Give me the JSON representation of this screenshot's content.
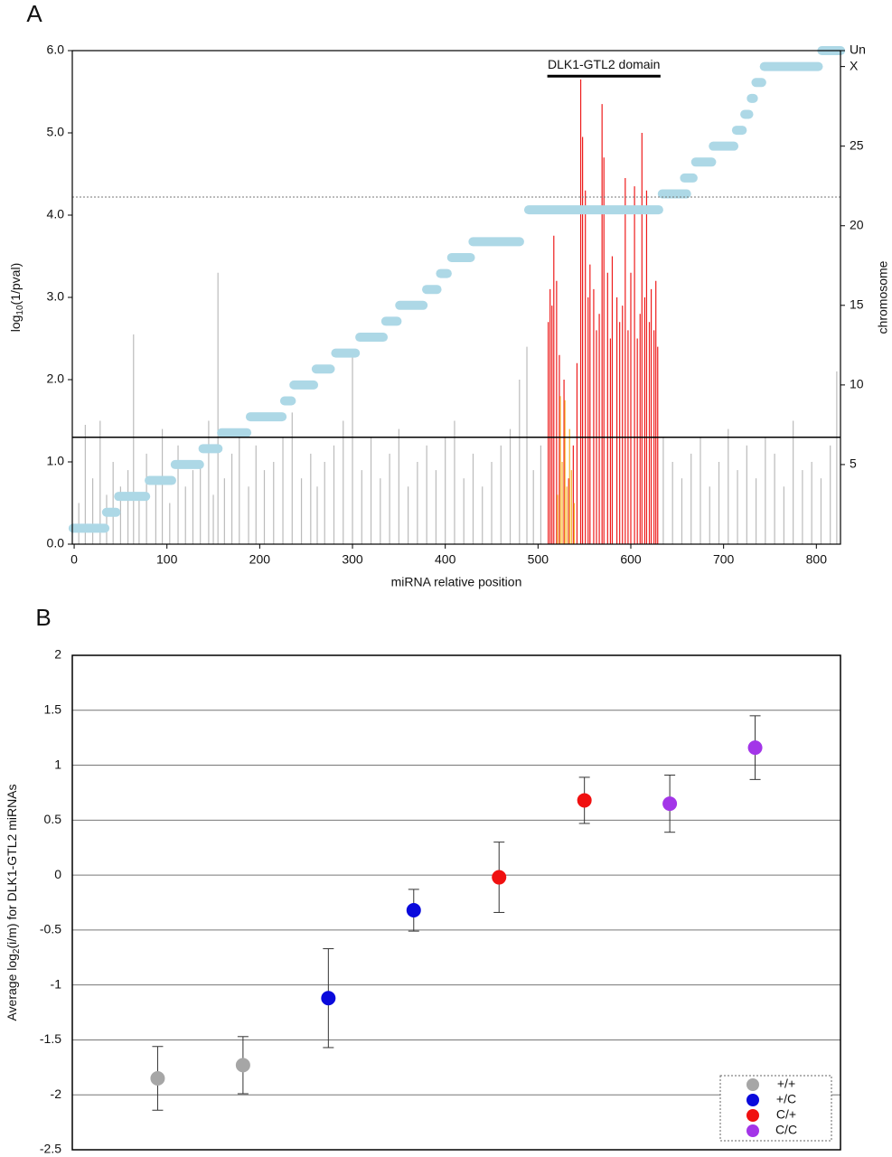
{
  "chart_data": [
    {
      "type": "bar",
      "panel": "A",
      "xlabel": "miRNA relative position",
      "ylabel": "log",
      "ylabel_sub": "10",
      "ylabel_rest": "(1/pval)",
      "y2label": "chromosome",
      "xlim": [
        -2,
        826
      ],
      "xticks": [
        0,
        100,
        200,
        300,
        400,
        500,
        600,
        700,
        800
      ],
      "ylim": [
        0,
        6
      ],
      "yticks": [
        {
          "value": 0,
          "label": "0.0"
        },
        {
          "value": 1,
          "label": "1.0"
        },
        {
          "value": 2,
          "label": "2.0"
        },
        {
          "value": 3,
          "label": "3.0"
        },
        {
          "value": 4,
          "label": "4.0"
        },
        {
          "value": 5,
          "label": "5.0"
        },
        {
          "value": 6,
          "label": "6.0"
        }
      ],
      "y2lim": [
        0,
        31
      ],
      "y2ticks": [
        5,
        10,
        15,
        20,
        25,
        {
          "value": 30,
          "label": "X"
        },
        {
          "value": 31,
          "label": "Un"
        }
      ],
      "series": [
        {
          "color": "#bbbbbb",
          "x": [
            5,
            12,
            20,
            28,
            35,
            42,
            50,
            58,
            64,
            70,
            78,
            88,
            95,
            103,
            112,
            120,
            128,
            136,
            145,
            150,
            155,
            162,
            170,
            178,
            188,
            196,
            205,
            215,
            225,
            235,
            245,
            255,
            262,
            270,
            280,
            290,
            300,
            310,
            320,
            330,
            340,
            350,
            360,
            370,
            380,
            390,
            400,
            410,
            420,
            430,
            440,
            450,
            460,
            470,
            480,
            488,
            495,
            503,
            635,
            645,
            655,
            665,
            675,
            685,
            695,
            705,
            715,
            725,
            735,
            745,
            755,
            765,
            775,
            785,
            795,
            805,
            815,
            822
          ],
          "values": [
            0.5,
            1.45,
            0.8,
            1.5,
            0.6,
            1.0,
            0.7,
            0.9,
            2.55,
            0.6,
            1.1,
            0.8,
            1.4,
            0.5,
            1.2,
            0.7,
            0.9,
            1.0,
            1.5,
            0.6,
            3.3,
            0.8,
            1.1,
            1.4,
            0.7,
            1.2,
            0.9,
            1.0,
            1.3,
            1.6,
            0.8,
            1.1,
            0.7,
            1.0,
            1.2,
            1.5,
            2.3,
            0.9,
            1.3,
            0.8,
            1.1,
            1.4,
            0.7,
            1.0,
            1.2,
            0.9,
            1.3,
            1.5,
            0.8,
            1.1,
            0.7,
            1.0,
            1.2,
            1.4,
            2.0,
            2.4,
            0.9,
            1.2,
            1.3,
            1.0,
            0.8,
            1.1,
            1.3,
            0.7,
            1.0,
            1.4,
            0.9,
            1.2,
            0.8,
            1.3,
            1.1,
            0.7,
            1.5,
            0.9,
            1.0,
            0.8,
            1.2,
            2.1
          ]
        },
        {
          "color": "#ee1c1c",
          "x": [
            511,
            513,
            515,
            517,
            520,
            523,
            528,
            533,
            538,
            542,
            546,
            548,
            551,
            554,
            556,
            560,
            563,
            566,
            569,
            571,
            575,
            578,
            580,
            585,
            588,
            591,
            594,
            597,
            600,
            604,
            607,
            610,
            612,
            615,
            617,
            620,
            622,
            625,
            627,
            629
          ],
          "values": [
            2.7,
            3.1,
            2.9,
            3.75,
            3.2,
            2.3,
            2.0,
            0.8,
            1.2,
            2.2,
            5.65,
            4.95,
            4.3,
            3.0,
            3.4,
            3.1,
            2.6,
            2.8,
            5.35,
            4.7,
            3.3,
            2.5,
            3.5,
            3.0,
            2.7,
            2.9,
            4.45,
            2.6,
            3.3,
            4.35,
            2.5,
            2.8,
            5.0,
            3.0,
            4.3,
            2.7,
            3.1,
            2.6,
            3.2,
            2.4
          ]
        },
        {
          "color": "#f5b52a",
          "x": [
            521,
            524,
            526,
            529,
            531,
            534,
            536,
            539
          ],
          "values": [
            0.6,
            1.8,
            1.0,
            1.75,
            0.7,
            1.4,
            0.9,
            0.5
          ]
        }
      ],
      "hlines": [
        {
          "value": 1.3,
          "style": "solid"
        },
        {
          "value": 4.22,
          "style": "dotted"
        }
      ],
      "annotation": {
        "text": "DLK1-GTL2 domain",
        "x": [
          510,
          632
        ],
        "y": 5.69
      },
      "chromosome_segments": {
        "color": "#add8e6",
        "axis": "y2",
        "start": [
          -6,
          30,
          43,
          76,
          104,
          134,
          154,
          185,
          222,
          232,
          256,
          277,
          303,
          331,
          346,
          375,
          390,
          402,
          425,
          485,
          629,
          653,
          665,
          684,
          709,
          718,
          725,
          730,
          739,
          801
        ],
        "end": [
          38,
          50,
          82,
          110,
          140,
          160,
          191,
          229,
          239,
          263,
          281,
          308,
          338,
          353,
          381,
          396,
          407,
          432,
          485,
          635,
          665,
          672,
          692,
          716,
          725,
          732,
          737,
          746,
          807,
          831
        ],
        "values": [
          1,
          2,
          3,
          4,
          5,
          6,
          7,
          8,
          9,
          10,
          11,
          12,
          13,
          14,
          15,
          16,
          17,
          18,
          19,
          21,
          22,
          23,
          24,
          25,
          26,
          27,
          28,
          29,
          30,
          31
        ]
      }
    },
    {
      "type": "scatter",
      "panel": "B",
      "ylabel": "Average log",
      "ylabel_sub": "2",
      "ylabel_rest": "(i/m) for DLK1-GTL2 miRNAs",
      "xlim": [
        0,
        9
      ],
      "ylim": [
        -2.5,
        2
      ],
      "yticks": [
        2,
        1.5,
        1,
        0.5,
        0,
        -0.5,
        -1,
        -1.5,
        -2,
        -2.5
      ],
      "grid": true,
      "legend": "lower right",
      "series": [
        {
          "name": "+/+",
          "color": "#a6a6a6",
          "x": [
            1,
            2
          ],
          "values": [
            -1.85,
            -1.73
          ],
          "errors": [
            0.29,
            0.26
          ]
        },
        {
          "name": "+/C",
          "color": "#0a0adc",
          "x": [
            3,
            4
          ],
          "values": [
            -1.12,
            -0.32
          ],
          "errors": [
            0.45,
            0.19
          ]
        },
        {
          "name": "C/+",
          "color": "#f01010",
          "x": [
            5,
            6
          ],
          "values": [
            -0.02,
            0.68
          ],
          "errors": [
            0.32,
            0.21
          ]
        },
        {
          "name": "C/C",
          "color": "#a335e8",
          "x": [
            7,
            8
          ],
          "values": [
            0.65,
            1.16
          ],
          "errors": [
            0.26,
            0.29
          ]
        }
      ]
    }
  ]
}
